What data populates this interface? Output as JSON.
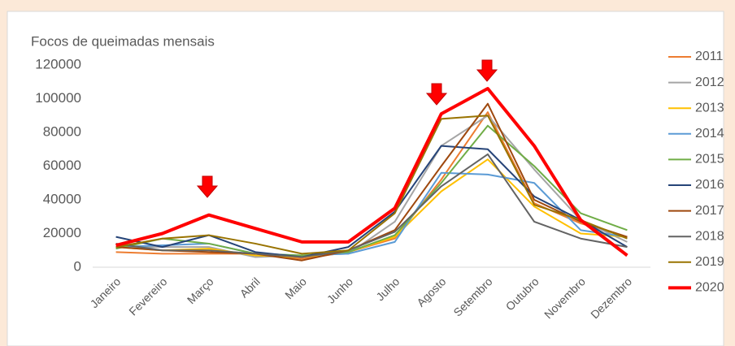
{
  "chart_data": {
    "type": "line",
    "title": "Focos de queimadas mensais",
    "categories": [
      "Janeiro",
      "Fevereiro",
      "Março",
      "Abril",
      "Maio",
      "Junho",
      "Julho",
      "Agosto",
      "Setembro",
      "Outubro",
      "Novembro",
      "Dezembro"
    ],
    "ylim": [
      0,
      120000
    ],
    "yticks": [
      0,
      20000,
      40000,
      60000,
      80000,
      100000,
      120000
    ],
    "grid": false,
    "legend": "right",
    "series": [
      {
        "name": "2011",
        "color": "#ed7d31",
        "values": [
          9000,
          8000,
          8000,
          8000,
          5000,
          9000,
          17000,
          52000,
          92000,
          38000,
          26000,
          18000
        ]
      },
      {
        "name": "2012",
        "color": "#a5a5a5",
        "values": [
          12000,
          12000,
          12000,
          6000,
          7000,
          8000,
          27000,
          72000,
          90000,
          58000,
          28000,
          15000
        ]
      },
      {
        "name": "2013",
        "color": "#ffc000",
        "values": [
          12000,
          10000,
          11000,
          7000,
          6000,
          9000,
          18000,
          45000,
          64000,
          36000,
          20000,
          18000
        ]
      },
      {
        "name": "2014",
        "color": "#5b9bd5",
        "values": [
          12000,
          13000,
          14000,
          8000,
          7000,
          8000,
          15000,
          56000,
          55000,
          50000,
          22000,
          18000
        ]
      },
      {
        "name": "2015",
        "color": "#70ad47",
        "values": [
          11000,
          17000,
          14000,
          8000,
          7000,
          9000,
          19000,
          50000,
          84000,
          60000,
          32000,
          22000
        ]
      },
      {
        "name": "2016",
        "color": "#264478",
        "values": [
          18000,
          12000,
          19000,
          9000,
          6000,
          12000,
          33000,
          72000,
          70000,
          42000,
          28000,
          12000
        ]
      },
      {
        "name": "2017",
        "color": "#9e480e",
        "values": [
          12000,
          10000,
          9000,
          8000,
          4000,
          10000,
          22000,
          60000,
          97000,
          40000,
          27000,
          18000
        ]
      },
      {
        "name": "2018",
        "color": "#636363",
        "values": [
          14000,
          10000,
          10000,
          8000,
          6000,
          10000,
          21000,
          48000,
          67000,
          27000,
          17000,
          12000
        ]
      },
      {
        "name": "2019",
        "color": "#997300",
        "values": [
          12000,
          17000,
          19000,
          14000,
          8000,
          10000,
          32000,
          88000,
          90000,
          37000,
          28000,
          17000
        ]
      },
      {
        "name": "2020",
        "color": "#ff0000",
        "values": [
          13000,
          20000,
          31000,
          23000,
          15000,
          15000,
          35000,
          91000,
          106000,
          72000,
          28000,
          7000
        ]
      }
    ]
  }
}
